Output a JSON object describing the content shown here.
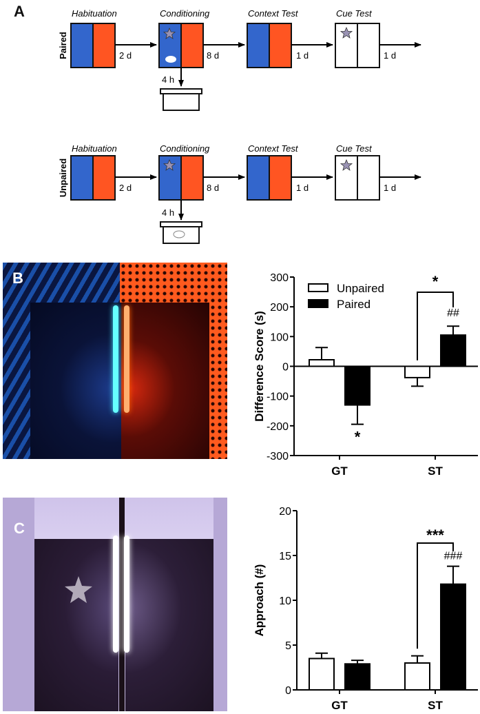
{
  "panel_a": {
    "letter": "A",
    "rows": [
      {
        "group": "Paired",
        "stages": [
          "Habituation",
          "Conditioning",
          "Context Test",
          "Cue Test"
        ],
        "intervals": [
          "2 d",
          "8 d",
          "1 d",
          "1 d"
        ],
        "home_cage_delay": "4 h",
        "mouse_location": "conditioning-chamber"
      },
      {
        "group": "Unpaired",
        "stages": [
          "Habituation",
          "Conditioning",
          "Context Test",
          "Cue Test"
        ],
        "intervals": [
          "2 d",
          "8 d",
          "1 d",
          "1 d"
        ],
        "home_cage_delay": "4 h",
        "mouse_location": "home-cage"
      }
    ],
    "colors": {
      "blue": "#3366cc",
      "orange": "#ff5522",
      "star": "#9a93b4"
    }
  },
  "panel_b": {
    "letter": "B",
    "photo": "blue-striped and orange-patterned context chamber"
  },
  "panel_c": {
    "letter": "C",
    "photo": "cue chamber with star on dark wall"
  },
  "chart_data": [
    {
      "type": "bar",
      "title": "",
      "xlabel": "",
      "ylabel": "Difference Score (s)",
      "categories": [
        "GT",
        "ST"
      ],
      "ylim": [
        -300,
        300
      ],
      "yticks": [
        300,
        200,
        100,
        0,
        -100,
        -200,
        -300
      ],
      "legend": [
        "Unpaired",
        "Paired"
      ],
      "legend_position": "top-left",
      "series": [
        {
          "name": "Unpaired",
          "values": [
            22,
            -38
          ],
          "error_upper": [
            63,
            -67
          ],
          "fill": "#ffffff"
        },
        {
          "name": "Paired",
          "values": [
            -130,
            105
          ],
          "error_upper": [
            -195,
            135
          ],
          "fill": "#000000"
        }
      ],
      "annotations": [
        {
          "text": "*",
          "target": "GT Paired",
          "position": "below"
        },
        {
          "text": "##",
          "target": "ST Paired",
          "position": "above"
        },
        {
          "text": "*",
          "target": "ST Unpaired vs ST Paired",
          "position": "bracket"
        }
      ]
    },
    {
      "type": "bar",
      "title": "",
      "xlabel": "",
      "ylabel": "Approach (#)",
      "categories": [
        "GT",
        "ST"
      ],
      "ylim": [
        0,
        20
      ],
      "yticks": [
        20,
        15,
        10,
        5,
        0
      ],
      "legend": [
        "Unpaired",
        "Paired"
      ],
      "series": [
        {
          "name": "Unpaired",
          "values": [
            3.5,
            3.0
          ],
          "error_upper": [
            4.1,
            3.8
          ],
          "fill": "#ffffff"
        },
        {
          "name": "Paired",
          "values": [
            2.9,
            11.8
          ],
          "error_upper": [
            3.3,
            13.8
          ],
          "fill": "#000000"
        }
      ],
      "annotations": [
        {
          "text": "###",
          "target": "ST Paired",
          "position": "above"
        },
        {
          "text": "***",
          "target": "ST Unpaired vs ST Paired",
          "position": "bracket"
        }
      ]
    }
  ]
}
